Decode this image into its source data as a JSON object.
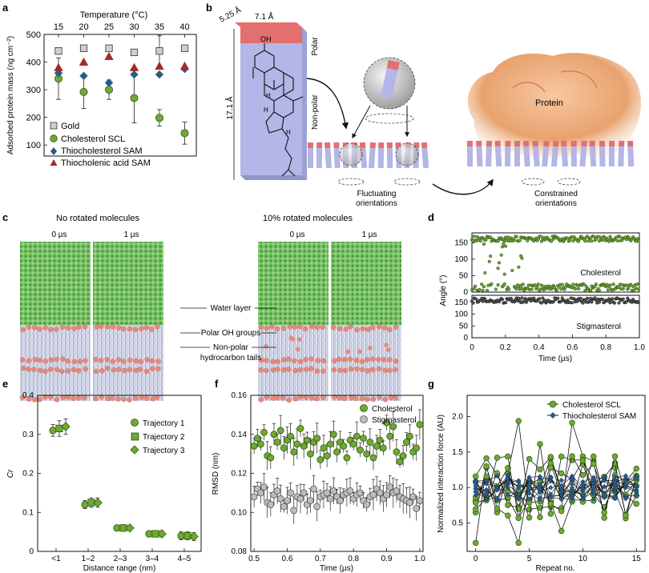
{
  "colors": {
    "green": "#6fa832",
    "green_dark": "#2f5a12",
    "grey": "#bdbdbd",
    "blue": "#2b5a8a",
    "red": "#a22b2b",
    "water": "#5aa84a",
    "lipid_head": "#e58a7a",
    "lipid_tail": "#b8bedb",
    "mol_body": "#b3b6e6",
    "mol_top": "#e46f6f",
    "protein": "#e59b68"
  },
  "panel_labels": {
    "a": "a",
    "b": "b",
    "c": "c",
    "d": "d",
    "e": "e",
    "f": "f",
    "g": "g"
  },
  "panel_a": {
    "chart_data": {
      "type": "scatter",
      "top_xlabel": "Temperature (°C)",
      "top_ticks": [
        "15",
        "20",
        "25",
        "30",
        "35",
        "40"
      ],
      "x": [
        15,
        20,
        25,
        30,
        35,
        40
      ],
      "ylabel": "Adsorbed protein mass (ng cm⁻²)",
      "yticks": [
        "100",
        "200",
        "300",
        "400",
        "500"
      ],
      "ylim": [
        60,
        500
      ],
      "series": [
        {
          "name": "Gold",
          "marker": "square",
          "values": [
            440,
            450,
            450,
            435,
            440,
            450
          ],
          "err": [
            0,
            0,
            0,
            0,
            55,
            0
          ]
        },
        {
          "name": "Cholesterol SCL",
          "marker": "circle",
          "values": [
            340,
            292,
            300,
            270,
            198,
            143
          ],
          "err": [
            75,
            60,
            35,
            90,
            30,
            40
          ]
        },
        {
          "name": "Thiocholesterol SAM",
          "marker": "diamond",
          "values": [
            360,
            350,
            325,
            355,
            355,
            375
          ],
          "err": [
            0,
            0,
            0,
            0,
            0,
            0
          ]
        },
        {
          "name": "Thiocholenic acid SAM",
          "marker": "triangle",
          "values": [
            380,
            400,
            420,
            380,
            385,
            385
          ],
          "err": [
            0,
            0,
            0,
            0,
            0,
            0
          ]
        }
      ]
    }
  },
  "panel_b": {
    "dim_top_a": "5.25 Å",
    "dim_top_b": "7.1 Å",
    "dim_side": "17.1 Å",
    "oh_label": "OH",
    "polar_label": "Polar",
    "nonpolar_label": "Non-polar",
    "h_label": "H",
    "protein_label": "Protein",
    "fluct_label_1": "Fluctuating",
    "fluct_label_2": "orientations",
    "constr_label_1": "Constrained",
    "constr_label_2": "orientations"
  },
  "panel_c": {
    "title_left": "No rotated molecules",
    "title_right": "10% rotated molecules",
    "time_0": "0 µs",
    "time_1": "1 µs",
    "label_water": "Water layer",
    "label_polar": "Polar OH groups",
    "label_nonpolar_1": "Non-polar",
    "label_nonpolar_2": "hydrocarbon tails"
  },
  "panel_d": {
    "chart_data": {
      "type": "scatter",
      "xlabel": "Time (µs)",
      "ylabel": "Angle (°)",
      "xticks": [
        "0",
        "0.2",
        "0.4",
        "0.6",
        "0.8",
        "1.0"
      ],
      "xlim": [
        0,
        1.0
      ],
      "yticks_top": [
        "0",
        "50",
        "100",
        "150"
      ],
      "yticks_bottom": [
        "0",
        "50",
        "100",
        "150"
      ],
      "ylim": [
        0,
        180
      ],
      "series": [
        {
          "name": "Cholesterol",
          "description": "two populations near 165° and near 15° (transitions up to 0.3 µs)"
        },
        {
          "name": "Stigmasterol",
          "description": "single population near 160°"
        }
      ]
    }
  },
  "panel_e": {
    "chart_data": {
      "type": "scatter",
      "xlabel": "Distance range (nm)",
      "ylabel": "Cr",
      "categories": [
        "<1",
        "1–2",
        "2–3",
        "3–4",
        "4–5"
      ],
      "yticks": [
        "0",
        "0.1",
        "0.2",
        "0.3",
        "0.4"
      ],
      "ylim": [
        0,
        0.4
      ],
      "series": [
        {
          "name": "Trajectory 1",
          "marker": "circle",
          "values": [
            0.31,
            0.12,
            0.06,
            0.045,
            0.04
          ],
          "err": [
            0.015,
            0.01,
            0.005,
            0.008,
            0.01
          ]
        },
        {
          "name": "Trajectory 2",
          "marker": "square",
          "values": [
            0.315,
            0.125,
            0.06,
            0.045,
            0.04
          ],
          "err": [
            0.02,
            0.012,
            0.005,
            0.008,
            0.01
          ]
        },
        {
          "name": "Trajectory 3",
          "marker": "diamond",
          "values": [
            0.32,
            0.125,
            0.06,
            0.045,
            0.038
          ],
          "err": [
            0.02,
            0.012,
            0.005,
            0.008,
            0.01
          ]
        }
      ]
    }
  },
  "panel_f": {
    "chart_data": {
      "type": "scatter",
      "xlabel": "Time (µs)",
      "ylabel": "RMSD (nm)",
      "xticks": [
        "0.5",
        "0.6",
        "0.7",
        "0.8",
        "0.9",
        "1.0"
      ],
      "xlim": [
        0.49,
        1.01
      ],
      "yticks": [
        "0.08",
        "0.10",
        "0.12",
        "0.14",
        "0.16"
      ],
      "ylim": [
        0.08,
        0.16
      ],
      "series": [
        {
          "name": "Cholesterol",
          "x": [
            0.5,
            0.51,
            0.52,
            0.53,
            0.54,
            0.55,
            0.56,
            0.57,
            0.58,
            0.59,
            0.6,
            0.61,
            0.62,
            0.63,
            0.64,
            0.65,
            0.66,
            0.67,
            0.68,
            0.69,
            0.7,
            0.71,
            0.72,
            0.73,
            0.74,
            0.75,
            0.76,
            0.77,
            0.78,
            0.79,
            0.8,
            0.81,
            0.82,
            0.83,
            0.84,
            0.85,
            0.86,
            0.87,
            0.88,
            0.89,
            0.9,
            0.91,
            0.92,
            0.93,
            0.94,
            0.95,
            0.96,
            0.97,
            0.98,
            0.99,
            1.0
          ],
          "values": [
            0.134,
            0.138,
            0.135,
            0.141,
            0.129,
            0.128,
            0.14,
            0.136,
            0.142,
            0.133,
            0.137,
            0.139,
            0.131,
            0.135,
            0.143,
            0.134,
            0.137,
            0.13,
            0.136,
            0.138,
            0.127,
            0.133,
            0.129,
            0.135,
            0.14,
            0.131,
            0.136,
            0.134,
            0.128,
            0.137,
            0.135,
            0.139,
            0.132,
            0.138,
            0.13,
            0.136,
            0.128,
            0.134,
            0.137,
            0.133,
            0.146,
            0.139,
            0.144,
            0.131,
            0.126,
            0.129,
            0.136,
            0.139,
            0.131,
            0.133,
            0.145
          ]
        },
        {
          "name": "Stigmasterol",
          "x": [
            0.5,
            0.51,
            0.52,
            0.53,
            0.54,
            0.55,
            0.56,
            0.57,
            0.58,
            0.59,
            0.6,
            0.61,
            0.62,
            0.63,
            0.64,
            0.65,
            0.66,
            0.67,
            0.68,
            0.69,
            0.7,
            0.71,
            0.72,
            0.73,
            0.74,
            0.75,
            0.76,
            0.77,
            0.78,
            0.79,
            0.8,
            0.81,
            0.82,
            0.83,
            0.84,
            0.85,
            0.86,
            0.87,
            0.88,
            0.89,
            0.9,
            0.91,
            0.92,
            0.93,
            0.94,
            0.95,
            0.96,
            0.97,
            0.98,
            0.99,
            1.0
          ],
          "values": [
            0.108,
            0.112,
            0.11,
            0.113,
            0.105,
            0.104,
            0.109,
            0.111,
            0.107,
            0.103,
            0.106,
            0.11,
            0.101,
            0.108,
            0.107,
            0.11,
            0.104,
            0.106,
            0.112,
            0.103,
            0.108,
            0.109,
            0.11,
            0.107,
            0.111,
            0.108,
            0.106,
            0.109,
            0.11,
            0.111,
            0.107,
            0.109,
            0.11,
            0.106,
            0.104,
            0.108,
            0.109,
            0.112,
            0.11,
            0.107,
            0.109,
            0.113,
            0.11,
            0.111,
            0.108,
            0.107,
            0.106,
            0.105,
            0.108,
            0.102,
            0.106
          ]
        }
      ]
    }
  },
  "panel_g": {
    "chart_data": {
      "type": "line",
      "xlabel": "Repeat no.",
      "ylabel": "Normalized interaction force (AU)",
      "xticks": [
        "0",
        "5",
        "10",
        "15"
      ],
      "xlim": [
        -0.8,
        15.8
      ],
      "yticks": [
        "0.5",
        "1.0",
        "1.5",
        "2.0"
      ],
      "ylim": [
        0.1,
        2.3
      ],
      "series": [
        {
          "name": "Cholesterol SCL",
          "description": "many traces with wide spread between about 0.2 and 2.1"
        },
        {
          "name": "Thiocholesterol SAM",
          "description": "many traces tightly clustered around 1.0"
        }
      ]
    }
  }
}
